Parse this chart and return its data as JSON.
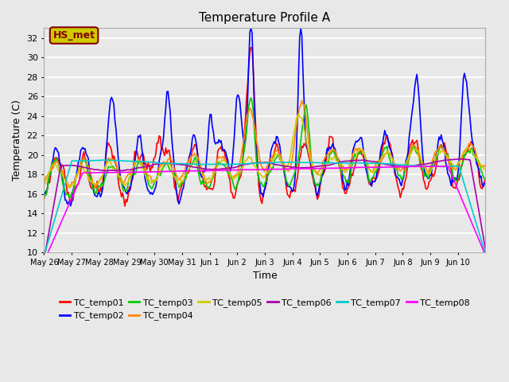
{
  "title": "Temperature Profile A",
  "xlabel": "Time",
  "ylabel": "Temperature (C)",
  "ylim": [
    10,
    33
  ],
  "yticks": [
    10,
    12,
    14,
    16,
    18,
    20,
    22,
    24,
    26,
    28,
    30,
    32
  ],
  "xlim": [
    0,
    16
  ],
  "xtick_positions": [
    0,
    1,
    2,
    3,
    4,
    5,
    6,
    7,
    8,
    9,
    10,
    11,
    12,
    13,
    14,
    15
  ],
  "xtick_labels": [
    "May 26",
    "May 27",
    "May 28",
    "May 29",
    "May 30",
    "May 31",
    "Jun 1",
    "Jun 2",
    "Jun 3",
    "Jun 4",
    "Jun 5",
    "Jun 6",
    "Jun 7",
    "Jun 8",
    "Jun 9",
    "Jun 10"
  ],
  "series_colors": {
    "TC_temp01": "#ff0000",
    "TC_temp02": "#0000ff",
    "TC_temp03": "#00cc00",
    "TC_temp04": "#ff8800",
    "TC_temp05": "#cccc00",
    "TC_temp06": "#aa00aa",
    "TC_temp07": "#00cccc",
    "TC_temp08": "#ff00ff"
  },
  "annotation_text": "HS_met",
  "annotation_color": "#880000",
  "annotation_bg": "#cccc00",
  "background_color": "#e8e8e8",
  "grid_color": "#ffffff",
  "linewidth": 1.2,
  "n_points": 400
}
